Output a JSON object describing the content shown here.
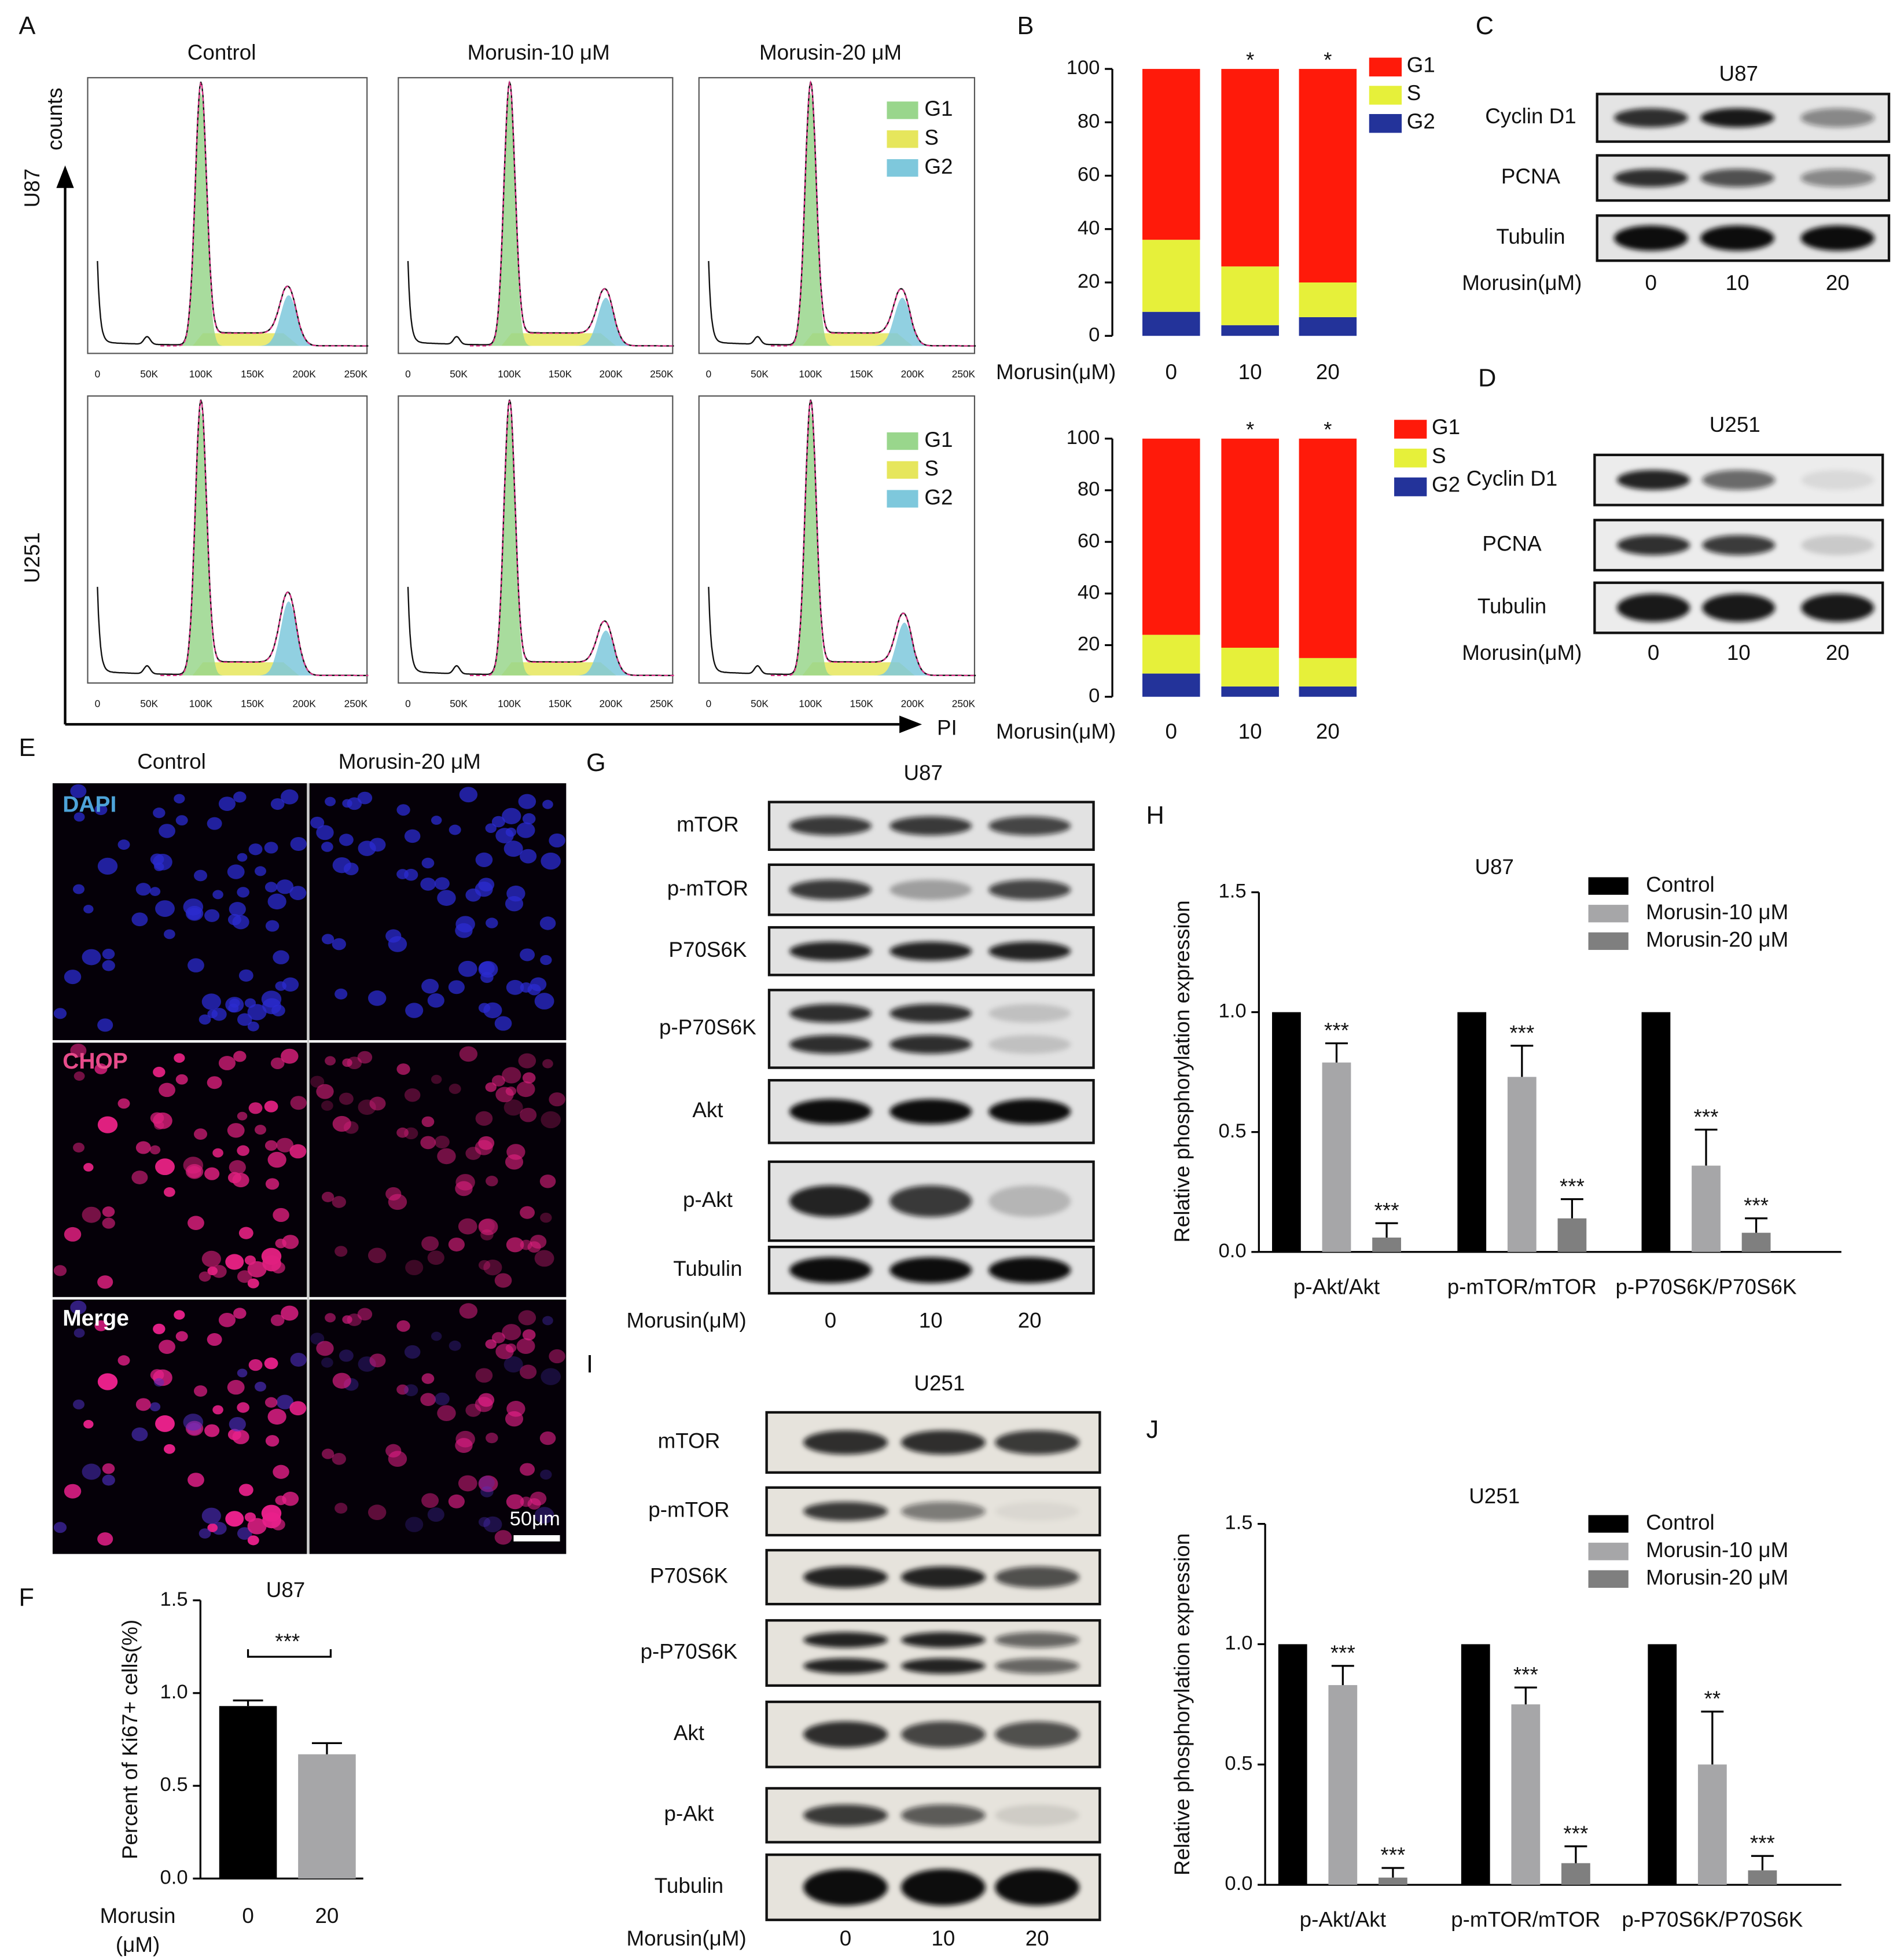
{
  "panel_labels": [
    "A",
    "B",
    "C",
    "D",
    "E",
    "F",
    "G",
    "H",
    "I",
    "J"
  ],
  "panel_a": {
    "columns": [
      "Control",
      "Morusin-10 μM",
      "Morusin-20 μM"
    ],
    "rows": [
      "U87",
      "U251"
    ],
    "y_label": "counts",
    "x_label": "PI",
    "legend": [
      "G1",
      "S",
      "G2"
    ],
    "legend_colors": [
      "#99d68c",
      "#e6e65c",
      "#7ec8dc"
    ],
    "xtick_labels": [
      "0",
      "50K",
      "100K",
      "150K",
      "200K",
      "250K"
    ]
  },
  "panel_c": {
    "title": "U87",
    "rows": [
      "Cyclin D1",
      "PCNA",
      "Tubulin"
    ],
    "x_label": "Morusin(μM)",
    "lanes": [
      "0",
      "10",
      "20"
    ]
  },
  "panel_d": {
    "title": "U251",
    "rows": [
      "Cyclin D1",
      "PCNA",
      "Tubulin"
    ],
    "x_label": "Morusin(μM)",
    "lanes": [
      "0",
      "10",
      "20"
    ]
  },
  "panel_e": {
    "columns": [
      "Control",
      "Morusin-20 μM"
    ],
    "rows": [
      "DAPI",
      "CHOP",
      "Merge"
    ],
    "scale_bar": "50μm"
  },
  "panel_g": {
    "title": "U87",
    "rows": [
      "mTOR",
      "p-mTOR",
      "P70S6K",
      "p-P70S6K",
      "Akt",
      "p-Akt",
      "Tubulin"
    ],
    "x_label": "Morusin(μM)",
    "lanes": [
      "0",
      "10",
      "20"
    ]
  },
  "panel_i": {
    "title": "U251",
    "rows": [
      "mTOR",
      "p-mTOR",
      "P70S6K",
      "p-P70S6K",
      "Akt",
      "p-Akt",
      "Tubulin"
    ],
    "x_label": "Morusin(μM)",
    "lanes": [
      "0",
      "10",
      "20"
    ]
  },
  "chart_data": [
    {
      "type": "bar",
      "stacked": true,
      "x_label": "Morusin(μM)",
      "categories": [
        "0",
        "10",
        "20"
      ],
      "series": [
        {
          "name": "G1",
          "color": "#ff1a0a",
          "values": [
            64,
            74,
            80
          ]
        },
        {
          "name": "S",
          "color": "#e6f03a",
          "values": [
            27,
            22,
            13
          ]
        },
        {
          "name": "G2",
          "color": "#23339a",
          "values": [
            9,
            4,
            7
          ]
        }
      ],
      "annotations": [
        null,
        "*",
        "*"
      ],
      "ylim": [
        0,
        100
      ],
      "yticks": [
        0,
        20,
        40,
        60,
        80,
        100
      ]
    },
    {
      "type": "bar",
      "stacked": true,
      "x_label": "Morusin(μM)",
      "categories": [
        "0",
        "10",
        "20"
      ],
      "series": [
        {
          "name": "G1",
          "color": "#ff1a0a",
          "values": [
            76,
            81,
            85
          ]
        },
        {
          "name": "S",
          "color": "#e6f03a",
          "values": [
            15,
            15,
            11
          ]
        },
        {
          "name": "G2",
          "color": "#23339a",
          "values": [
            9,
            4,
            4
          ]
        }
      ],
      "annotations": [
        null,
        "*",
        "*"
      ],
      "ylim": [
        0,
        100
      ],
      "yticks": [
        0,
        20,
        40,
        60,
        80,
        100
      ]
    },
    {
      "type": "bar",
      "title": "U87",
      "y_label": "Percent of Ki67+ cells(%)",
      "x_label": [
        "Morusin",
        "(μM)"
      ],
      "categories": [
        "0",
        "20"
      ],
      "values": [
        0.93,
        0.67
      ],
      "errors": [
        0.03,
        0.06
      ],
      "colors": [
        "#000000",
        "#a6a6a8"
      ],
      "annotation": "***",
      "ylim": [
        0,
        1.5
      ],
      "yticks": [
        {
          "value": 0,
          "label": "0.0"
        },
        {
          "value": 0.5,
          "label": "0.5"
        },
        {
          "value": 1,
          "label": "1.0"
        },
        {
          "value": 1.5,
          "label": "1.5"
        }
      ]
    },
    {
      "type": "bar",
      "title": "U87",
      "y_label": "Relative phosphorylation expression",
      "categories": [
        "p-Akt/Akt",
        "p-mTOR/mTOR",
        "p-P70S6K/P70S6K"
      ],
      "series": [
        {
          "name": "Control",
          "color": "#000000",
          "values": [
            1,
            1,
            1
          ]
        },
        {
          "name": "Morusin-10 μM",
          "color": "#a6a6a8",
          "values": [
            0.79,
            0.73,
            0.36
          ],
          "errors": [
            0.08,
            0.13,
            0.15
          ],
          "labels": [
            "***",
            "***",
            "***"
          ]
        },
        {
          "name": "Morusin-20 μM",
          "color": "#7f7f7f",
          "values": [
            0.06,
            0.14,
            0.08
          ],
          "errors": [
            0.06,
            0.08,
            0.06
          ],
          "labels": [
            "***",
            "***",
            "***"
          ]
        }
      ],
      "ylim": [
        0,
        1.5
      ],
      "yticks": [
        {
          "value": 0,
          "label": "0.0"
        },
        {
          "value": 0.5,
          "label": "0.5"
        },
        {
          "value": 1,
          "label": "1.0"
        },
        {
          "value": 1.5,
          "label": "1.5"
        }
      ],
      "legend": "upper right"
    },
    {
      "type": "bar",
      "title": "U251",
      "y_label": "Relative phosphorylation expression",
      "categories": [
        "p-Akt/Akt",
        "p-mTOR/mTOR",
        "p-P70S6K/P70S6K"
      ],
      "series": [
        {
          "name": "Control",
          "color": "#000000",
          "values": [
            1,
            1,
            1
          ]
        },
        {
          "name": "Morusin-10 μM",
          "color": "#a6a6a8",
          "values": [
            0.83,
            0.75,
            0.5
          ],
          "errors": [
            0.08,
            0.07,
            0.22
          ],
          "labels": [
            "***",
            "***",
            "**"
          ]
        },
        {
          "name": "Morusin-20 μM",
          "color": "#7f7f7f",
          "values": [
            0.03,
            0.09,
            0.06
          ],
          "errors": [
            0.04,
            0.07,
            0.06
          ],
          "labels": [
            "***",
            "***",
            "***"
          ]
        }
      ],
      "ylim": [
        0,
        1.5
      ],
      "yticks": [
        {
          "value": 0,
          "label": "0.0"
        },
        {
          "value": 0.5,
          "label": "0.5"
        },
        {
          "value": 1,
          "label": "1.0"
        },
        {
          "value": 1.5,
          "label": "1.5"
        }
      ],
      "legend": "upper right"
    }
  ]
}
